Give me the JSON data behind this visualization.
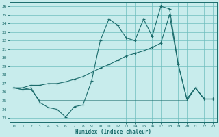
{
  "xlabel": "Humidex (Indice chaleur)",
  "background_color": "#c8ecec",
  "grid_color": "#6dbdbd",
  "line_color": "#1a6b6b",
  "xlim": [
    -0.5,
    23.5
  ],
  "ylim": [
    22.5,
    36.5
  ],
  "yticks": [
    23,
    24,
    25,
    26,
    27,
    28,
    29,
    30,
    31,
    32,
    33,
    34,
    35,
    36
  ],
  "xticks": [
    0,
    1,
    2,
    3,
    4,
    5,
    6,
    7,
    8,
    9,
    10,
    11,
    12,
    13,
    14,
    15,
    16,
    17,
    18,
    19,
    20,
    21,
    22,
    23
  ],
  "line1_x": [
    0,
    1,
    2,
    3,
    4,
    5,
    6,
    7,
    8,
    9,
    10,
    11,
    12,
    13,
    14,
    15,
    16,
    17,
    18,
    19,
    20,
    21,
    22,
    23
  ],
  "line1_y": [
    26.5,
    26.3,
    26.5,
    24.8,
    24.2,
    24.0,
    23.1,
    24.3,
    24.5,
    27.3,
    32.0,
    34.5,
    33.8,
    32.3,
    32.0,
    34.5,
    32.5,
    36.0,
    35.7,
    29.3,
    25.2,
    26.5,
    25.2,
    25.2
  ],
  "line2_x": [
    0,
    1,
    2,
    3,
    4,
    5,
    6,
    7,
    8,
    9,
    10,
    11,
    12,
    13,
    14,
    15,
    16,
    17,
    18,
    19,
    20,
    21,
    22,
    23
  ],
  "line2_y": [
    26.5,
    26.5,
    26.8,
    26.8,
    27.0,
    27.0,
    27.2,
    27.5,
    27.8,
    28.3,
    28.8,
    29.2,
    29.7,
    30.2,
    30.5,
    30.8,
    31.2,
    31.7,
    35.0,
    29.2,
    25.2,
    26.5,
    25.2,
    25.2
  ],
  "line3_x": [
    0,
    1,
    2,
    3,
    4,
    5,
    6,
    7,
    8,
    9,
    10,
    11,
    12,
    13,
    14,
    15,
    16,
    17,
    18,
    19,
    20,
    21,
    22,
    23
  ],
  "line3_y": [
    26.5,
    26.3,
    26.3,
    25.0,
    25.0,
    25.0,
    25.0,
    25.0,
    25.0,
    25.0,
    25.0,
    25.0,
    25.0,
    25.0,
    25.0,
    25.0,
    25.0,
    25.0,
    25.0,
    25.0,
    25.0,
    26.5,
    25.2,
    25.2
  ]
}
